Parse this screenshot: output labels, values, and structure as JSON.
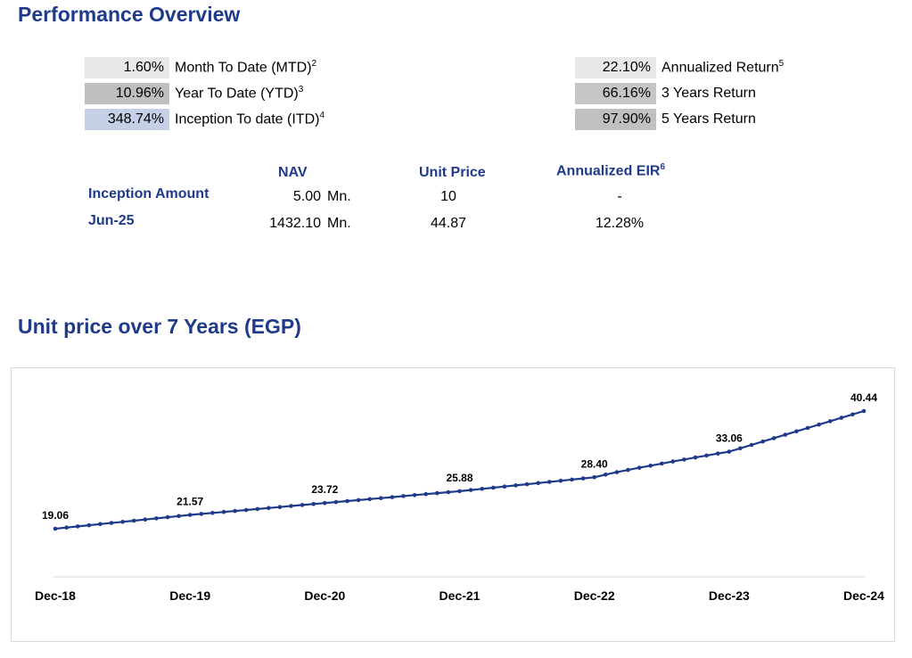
{
  "performance": {
    "title": "Performance Overview",
    "left": [
      {
        "value": "1.60%",
        "label": "Month To Date (MTD)",
        "sup": "2",
        "bg": "#e8e8e8"
      },
      {
        "value": "10.96%",
        "label": "Year To Date (YTD)",
        "sup": "3",
        "bg": "#bfbfbf"
      },
      {
        "value": "348.74%",
        "label": "Inception To date (ITD)",
        "sup": "4",
        "bg": "#c5cfe6"
      }
    ],
    "right": [
      {
        "value": "22.10%",
        "label": "Annualized Return",
        "sup": "5",
        "bg": "#e8e8e8"
      },
      {
        "value": "66.16%",
        "label": "3 Years Return",
        "sup": "",
        "bg": "#c6c6c6"
      },
      {
        "value": "97.90%",
        "label": "5 Years Return",
        "sup": "",
        "bg": "#c0c0c0"
      }
    ],
    "table": {
      "headers": {
        "nav": "NAV",
        "unit_price": "Unit Price",
        "eir": "Annualized EIR",
        "eir_sup": "6"
      },
      "rows": [
        {
          "label": "Inception Amount",
          "nav": "5.00",
          "nav_unit": "Mn.",
          "unit_price": "10",
          "eir": "-"
        },
        {
          "label": "Jun-25",
          "nav": "1432.10",
          "nav_unit": "Mn.",
          "unit_price": "44.87",
          "eir": "12.28%"
        }
      ]
    }
  },
  "chart_data": {
    "type": "line",
    "title": "Unit price over 7 Years (EGP)",
    "x_ticks": [
      "Dec-18",
      "Dec-19",
      "Dec-20",
      "Dec-21",
      "Dec-22",
      "Dec-23",
      "Dec-24"
    ],
    "labeled_points": [
      {
        "x": "Dec-18",
        "y": 19.06
      },
      {
        "x": "Dec-19",
        "y": 21.57
      },
      {
        "x": "Dec-20",
        "y": 23.72
      },
      {
        "x": "Dec-21",
        "y": 25.88
      },
      {
        "x": "Dec-22",
        "y": 28.4
      },
      {
        "x": "Dec-23",
        "y": 33.06
      },
      {
        "x": "Dec-24",
        "y": 40.44
      }
    ],
    "labels": [
      "19.06",
      "21.57",
      "23.72",
      "25.88",
      "28.40",
      "33.06",
      "40.44"
    ],
    "points_per_year": 12,
    "line_color": "#1f3a8a",
    "grid": false,
    "legend": "none"
  },
  "colors": {
    "accent": "#1f3a8a"
  }
}
